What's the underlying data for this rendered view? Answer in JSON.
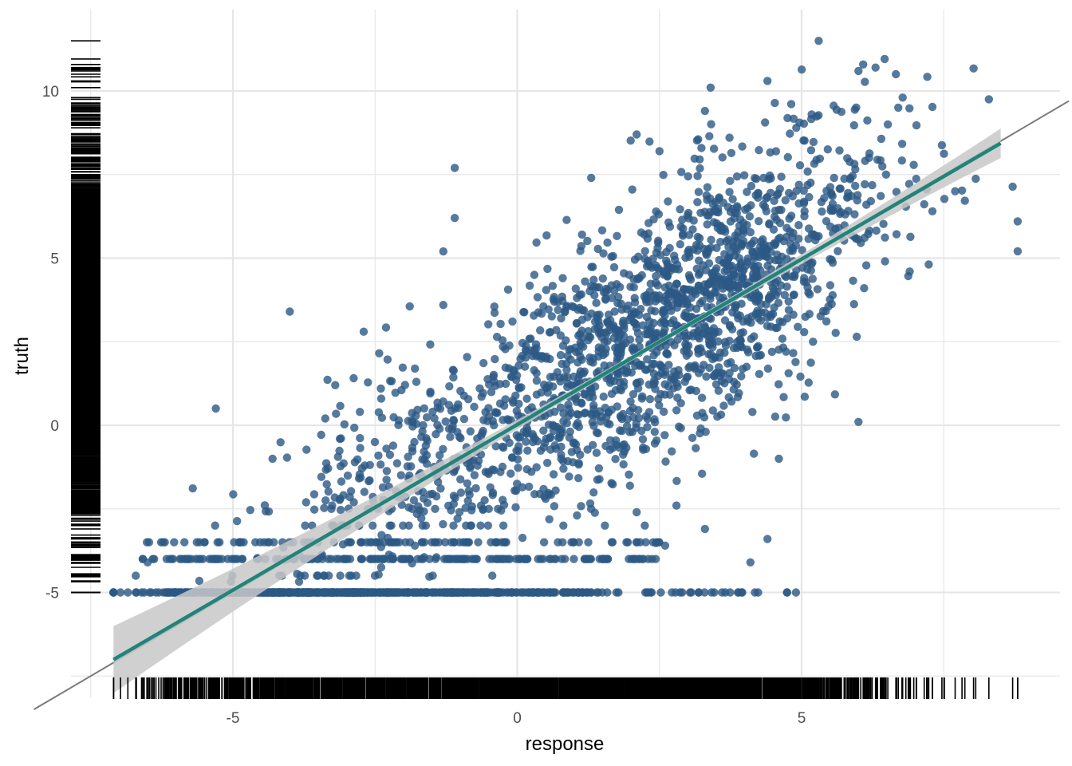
{
  "chart_data": {
    "type": "scatter",
    "title": "",
    "xlabel": "response",
    "ylabel": "truth",
    "xlim": [
      -7.8,
      9.6
    ],
    "ylim": [
      -7.8,
      12.2
    ],
    "x_ticks": [
      -5,
      0,
      5
    ],
    "y_ticks": [
      -5,
      0,
      5,
      10
    ],
    "x_tick_labels": [
      "-5",
      "0",
      "5"
    ],
    "y_tick_labels": [
      "-5",
      "0",
      "5",
      "10"
    ],
    "grid": true,
    "legend": "none",
    "n_points_approx": 3000,
    "floor_value": -5,
    "fit_line": {
      "slope": 0.99,
      "intercept": 0.02,
      "x_range": [
        -7.1,
        8.5
      ]
    },
    "identity_line": {
      "slope": 1,
      "intercept": 0
    },
    "rugs": {
      "x": true,
      "y": true
    },
    "colors": {
      "points": "#2c5985",
      "fit_line": "#21847a",
      "confidence_band": "#c8c8c8",
      "identity_line": "#7a7a7a",
      "grid": "#e6e6e6",
      "rug": "#000000"
    },
    "sample_points": [
      [
        -7.1,
        -5
      ],
      [
        -6.5,
        -4.1
      ],
      [
        -6.0,
        -5
      ],
      [
        -5.5,
        -3.5
      ],
      [
        -5.3,
        0.5
      ],
      [
        -4.0,
        3.4
      ],
      [
        -3.2,
        1.2
      ],
      [
        -2.7,
        2.8
      ],
      [
        -2.3,
        -0.7
      ],
      [
        -1.1,
        7.7
      ],
      [
        -1.1,
        6.2
      ],
      [
        -1.3,
        5.2
      ],
      [
        -1.3,
        3.6
      ],
      [
        0.3,
        4.5
      ],
      [
        0.8,
        4.4
      ],
      [
        1.3,
        7.4
      ],
      [
        2.1,
        8.7
      ],
      [
        2.5,
        8.2
      ],
      [
        3.3,
        9.4
      ],
      [
        3.4,
        10.1
      ],
      [
        4.4,
        10.3
      ],
      [
        5.3,
        11.5
      ],
      [
        6.0,
        10.6
      ],
      [
        6.3,
        10.7
      ],
      [
        6.7,
        9.5
      ],
      [
        8.8,
        6.1
      ],
      [
        7.7,
        7.0
      ],
      [
        7.3,
        6.4
      ],
      [
        6.9,
        4.6
      ],
      [
        6.1,
        4.1
      ],
      [
        5.2,
        2.5
      ],
      [
        4.6,
        -1.0
      ],
      [
        4.4,
        -3.4
      ],
      [
        4.1,
        -4.1
      ],
      [
        3.3,
        -3.1
      ],
      [
        2.8,
        -2.4
      ],
      [
        2.6,
        -3.6
      ],
      [
        2.1,
        -2.6
      ],
      [
        1.5,
        -4.0
      ],
      [
        1.3,
        -5
      ],
      [
        0.5,
        -2.2
      ],
      [
        -0.5,
        -2.5
      ],
      [
        -1.8,
        -3.6
      ],
      [
        -3.5,
        -4.0
      ],
      [
        4.9,
        -5
      ],
      [
        3.6,
        -5
      ],
      [
        2.9,
        -5
      ],
      [
        6.0,
        0.1
      ]
    ]
  }
}
